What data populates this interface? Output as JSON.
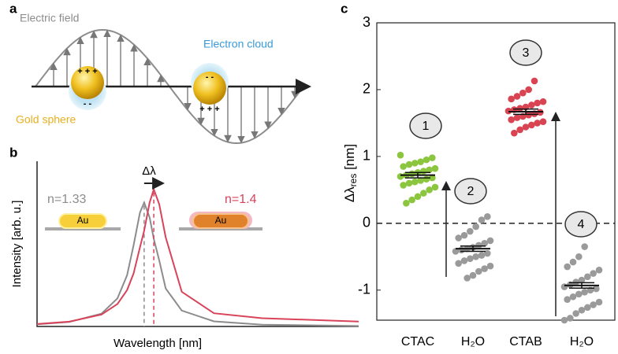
{
  "panel_a": {
    "label": "a",
    "field": "Electric field",
    "cloud": "Electron cloud",
    "sphere": "Gold sphere",
    "charges": [
      "+ + +",
      "- -",
      "- -",
      "+ + +"
    ]
  },
  "chart_data": [
    {
      "type": "line",
      "label": "b",
      "xlabel": "Wavelength [nm]",
      "ylabel": "Intensity [arb. u.]",
      "xlim": [
        0,
        100
      ],
      "ylim": [
        0,
        100
      ],
      "shift": "Δλ",
      "particle": "Au",
      "x": [
        0,
        10,
        20,
        25,
        28,
        30,
        32,
        33.3,
        35,
        36.3,
        38,
        40,
        45,
        55,
        70,
        100
      ],
      "series": [
        {
          "name": "n=1.33",
          "color": "#8c8c8c",
          "values": [
            1.3,
            2.7,
            7.7,
            17,
            31,
            49,
            69,
            75,
            66,
            53,
            40,
            23,
            9.6,
            3.1,
            1.1,
            0.3
          ]
        },
        {
          "name": "n=1.4",
          "color": "#d9435a",
          "values": [
            1.5,
            2.9,
            7.2,
            13.6,
            22,
            32,
            48,
            58,
            75,
            83,
            74,
            54,
            21,
            8,
            5,
            3
          ]
        }
      ]
    },
    {
      "type": "strip",
      "label": "c",
      "ylabel": {
        "main": "Δλ",
        "sub": "res",
        "unit": "[nm]"
      },
      "ylim": [
        -1.45,
        3
      ],
      "yticks": [
        -1,
        0,
        1,
        2,
        3
      ],
      "hline": 0,
      "groups": [
        {
          "category": "CTAC",
          "annotation": "1",
          "color": "#8cc63f",
          "mean": 0.72,
          "error": 0.04,
          "values": [
            1.02,
            0.98,
            0.95,
            0.92,
            0.9,
            0.88,
            0.85,
            0.82,
            0.8,
            0.78,
            0.76,
            0.74,
            0.72,
            0.7,
            0.68,
            0.66,
            0.64,
            0.62,
            0.6,
            0.57,
            0.54,
            0.5,
            0.45,
            0.4,
            0.35,
            0.3
          ]
        },
        {
          "category": "H₂O",
          "annotation": "2",
          "color": "#9a9a9a",
          "mean": -0.38,
          "error": 0.04,
          "values": [
            0.1,
            0.05,
            -0.05,
            -0.12,
            -0.18,
            -0.22,
            -0.26,
            -0.3,
            -0.33,
            -0.36,
            -0.38,
            -0.4,
            -0.42,
            -0.45,
            -0.48,
            -0.5,
            -0.53,
            -0.56,
            -0.6,
            -0.64,
            -0.68,
            -0.72,
            -0.78,
            -0.82
          ]
        },
        {
          "category": "CTAB",
          "annotation": "3",
          "color": "#d94452",
          "mean": 1.67,
          "error": 0.04,
          "values": [
            2.13,
            2.0,
            1.95,
            1.9,
            1.86,
            1.82,
            1.8,
            1.77,
            1.74,
            1.72,
            1.7,
            1.68,
            1.66,
            1.64,
            1.62,
            1.6,
            1.58,
            1.55,
            1.52,
            1.5,
            1.47,
            1.44,
            1.4,
            1.35
          ]
        },
        {
          "category": "H₂O",
          "annotation": "4",
          "color": "#9a9a9a",
          "mean": -0.93,
          "error": 0.04,
          "values": [
            -0.35,
            -0.5,
            -0.58,
            -0.65,
            -0.7,
            -0.75,
            -0.8,
            -0.85,
            -0.88,
            -0.92,
            -0.95,
            -0.98,
            -1.0,
            -1.03,
            -1.06,
            -1.1,
            -1.14,
            -1.18,
            -1.22,
            -1.26,
            -1.3,
            -1.35,
            -1.42,
            -1.45
          ]
        }
      ]
    }
  ]
}
